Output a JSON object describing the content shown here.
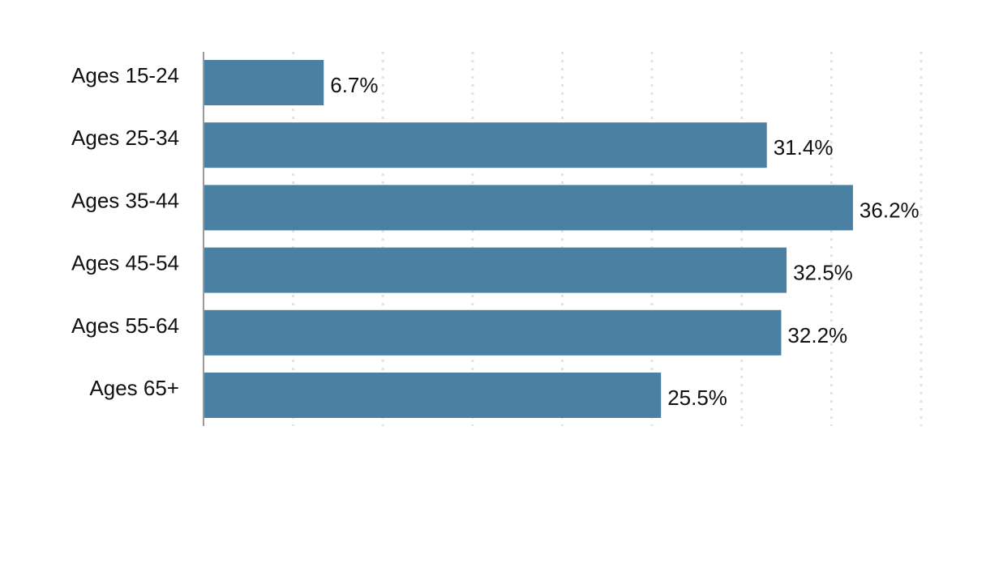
{
  "chart_data": {
    "type": "bar",
    "orientation": "horizontal",
    "categories": [
      "Ages 15-24",
      "Ages 25-34",
      "Ages 35-44",
      "Ages 45-54",
      "Ages 55-64",
      "Ages 65+"
    ],
    "values": [
      6.7,
      31.4,
      36.2,
      32.5,
      32.2,
      25.5
    ],
    "value_labels": [
      "6.7%",
      "31.4%",
      "36.2%",
      "32.5%",
      "32.2%",
      "25.5%"
    ],
    "title": "",
    "xlabel": "",
    "ylabel": "",
    "xlim": [
      0,
      40
    ],
    "grid": "vertical dotted",
    "bar_color": "#4a81a2",
    "grid_color": "#e2e2e2",
    "axis_color": "#9a9a9a"
  }
}
